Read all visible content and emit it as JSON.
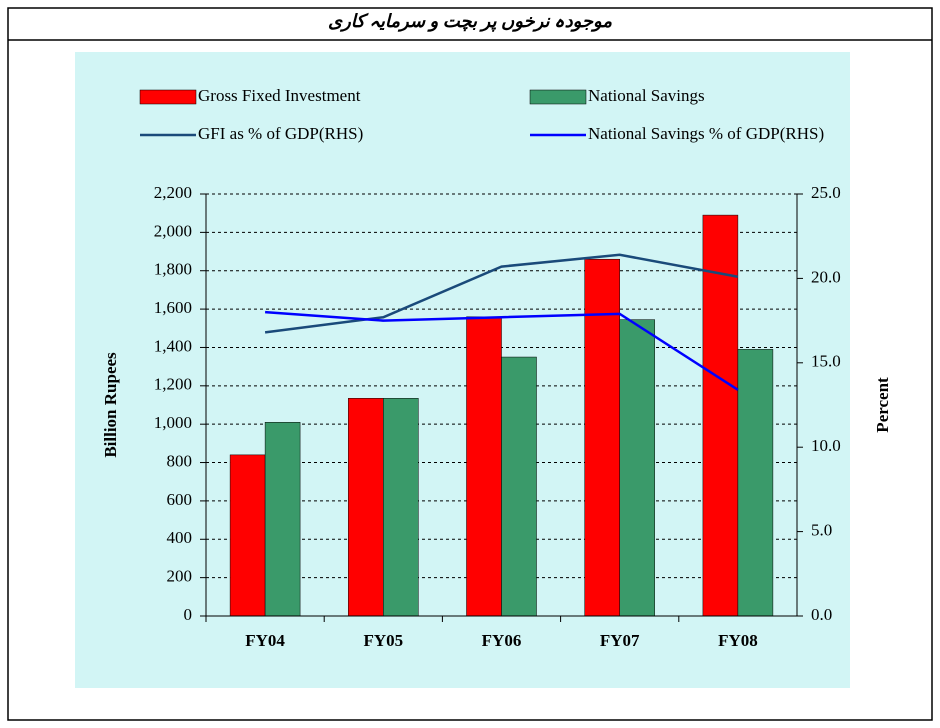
{
  "chart_data": {
    "type": "bar",
    "title": "موجودہ نرخوں پر بچت و سرمایہ کاری",
    "categories": [
      "FY04",
      "FY05",
      "FY06",
      "FY07",
      "FY08"
    ],
    "series": [
      {
        "name": "Gross Fixed Investment",
        "color": "#ff0000",
        "type": "bar",
        "values": [
          840,
          1135,
          1560,
          1860,
          2090
        ]
      },
      {
        "name": "National Savings",
        "color": "#3a9a6a",
        "type": "bar",
        "values": [
          1010,
          1135,
          1350,
          1545,
          1390
        ]
      },
      {
        "name": "GFI as % of GDP(RHS)",
        "color": "#1a4a7a",
        "type": "line",
        "axis": "y2",
        "values": [
          16.8,
          17.7,
          20.7,
          21.4,
          20.1
        ]
      },
      {
        "name": "National Savings % of GDP(RHS)",
        "color": "#0000ff",
        "type": "line",
        "axis": "y2",
        "values": [
          18.0,
          17.5,
          17.7,
          17.9,
          13.4
        ]
      }
    ],
    "y_label": "Billion Rupees",
    "y2_label": "Percent",
    "ylim": [
      0,
      2200
    ],
    "yticks": [
      0,
      200,
      400,
      600,
      800,
      {
        "value": 1000,
        "label": "1,000"
      },
      {
        "value": 1200,
        "label": "1,200"
      },
      {
        "value": 1400,
        "label": "1,400"
      },
      {
        "value": 1600,
        "label": "1,600"
      },
      {
        "value": 1800,
        "label": "1,800"
      },
      {
        "value": 2000,
        "label": "2,000"
      },
      {
        "value": 2200,
        "label": "2,200"
      }
    ],
    "y2lim": [
      0,
      25
    ],
    "y2ticks": [
      {
        "value": 0,
        "label": "0.0"
      },
      {
        "value": 5,
        "label": "5.0"
      },
      {
        "value": 10,
        "label": "10.0"
      },
      {
        "value": 15,
        "label": "15.0"
      },
      {
        "value": 20,
        "label": "20.0"
      },
      {
        "value": 25,
        "label": "25.0"
      }
    ],
    "grid": true
  }
}
